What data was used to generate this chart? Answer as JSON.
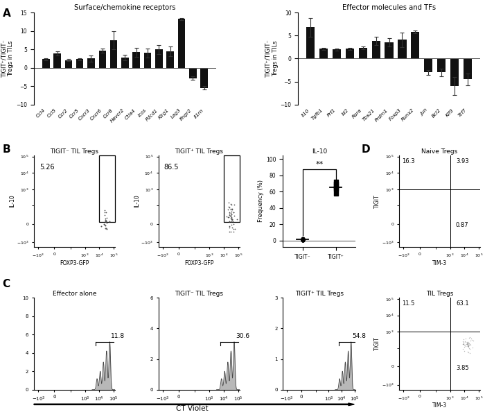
{
  "panel_A_left_title": "Surface/chemokine receptors",
  "panel_A_right_title": "Effector molecules and TFs",
  "ylabel_A": "TIGIT⁺/TIGIT⁻\nTregs in TILs",
  "left_categories": [
    "Ccl4",
    "Ccl5",
    "Ccr2",
    "Ccr5",
    "Cxcr3",
    "Cxcr6",
    "Ccr8",
    "Havcr2",
    "Ctla4",
    "Icos",
    "Pdcd1",
    "Klrg1",
    "Lag3",
    "Ifngr2",
    "Il1rn"
  ],
  "left_values": [
    2.3,
    3.9,
    2.1,
    2.3,
    2.5,
    4.7,
    7.5,
    2.8,
    4.2,
    4.0,
    5.0,
    4.5,
    13.3,
    -2.8,
    -5.5
  ],
  "left_errors": [
    0.3,
    0.5,
    0.3,
    0.3,
    0.8,
    0.6,
    2.5,
    0.8,
    1.3,
    1.2,
    1.2,
    1.3,
    0.3,
    0.5,
    0.5
  ],
  "right_categories": [
    "Il10",
    "Tgfb1",
    "Prf1",
    "Id2",
    "Rora",
    "Tbx21",
    "Prdm1",
    "Foxp3",
    "Runx2",
    "Jun",
    "Bcl2",
    "Klf3",
    "Tcf7"
  ],
  "right_values": [
    6.8,
    2.1,
    1.95,
    2.1,
    2.3,
    3.9,
    3.5,
    4.1,
    5.8,
    -3.0,
    -3.0,
    -6.0,
    -4.5
  ],
  "right_errors": [
    2.0,
    0.3,
    0.2,
    0.3,
    0.3,
    0.9,
    0.9,
    1.6,
    0.3,
    0.5,
    0.8,
    2.0,
    1.3
  ],
  "left_ylim": [
    -10,
    15
  ],
  "right_ylim": [
    -10,
    10
  ],
  "bar_color": "#111111",
  "panel_B_flow1_title": "TIGIT⁻ TIL Tregs",
  "panel_B_flow2_title": "TIGIT⁺ TIL Tregs",
  "panel_B_scatter_title": "IL-10",
  "panel_B_xlabel": "FOXP3-GFP",
  "panel_B_ylabel": "IL-10",
  "panel_B_freq_ylabel": "Frequency (%)",
  "val1_pct": "5.26",
  "val2_pct": "86.5",
  "panel_C_title1": "Effector alone",
  "panel_C_title2": "TIGIT⁻ TIL Tregs",
  "panel_C_title3": "TIGIT⁺ TIL Tregs",
  "panel_C_pct1": "11.8",
  "panel_C_pct2": "30.6",
  "panel_C_pct3": "54.8",
  "panel_C_xlabel": "CT Violet",
  "panel_D_title1": "Naive Tregs",
  "panel_D_title2": "TIL Tregs",
  "panel_D_xlabel": "TIM-3",
  "panel_D_ylabel": "TIGIT",
  "panel_D_vals1_ul": "16.3",
  "panel_D_vals1_ur": "3.93",
  "panel_D_vals1_ll": "0.87",
  "panel_D_vals2_ul": "11.5",
  "panel_D_vals2_ur": "63.1",
  "panel_D_vals2_ll": "3.85",
  "tigit_neg_scatter": [
    0.5,
    1.0,
    1.8,
    0.7,
    2.2,
    1.3
  ],
  "tigit_pos_scatter": [
    65.0,
    58.0,
    70.0,
    67.0,
    72.0,
    63.0
  ]
}
